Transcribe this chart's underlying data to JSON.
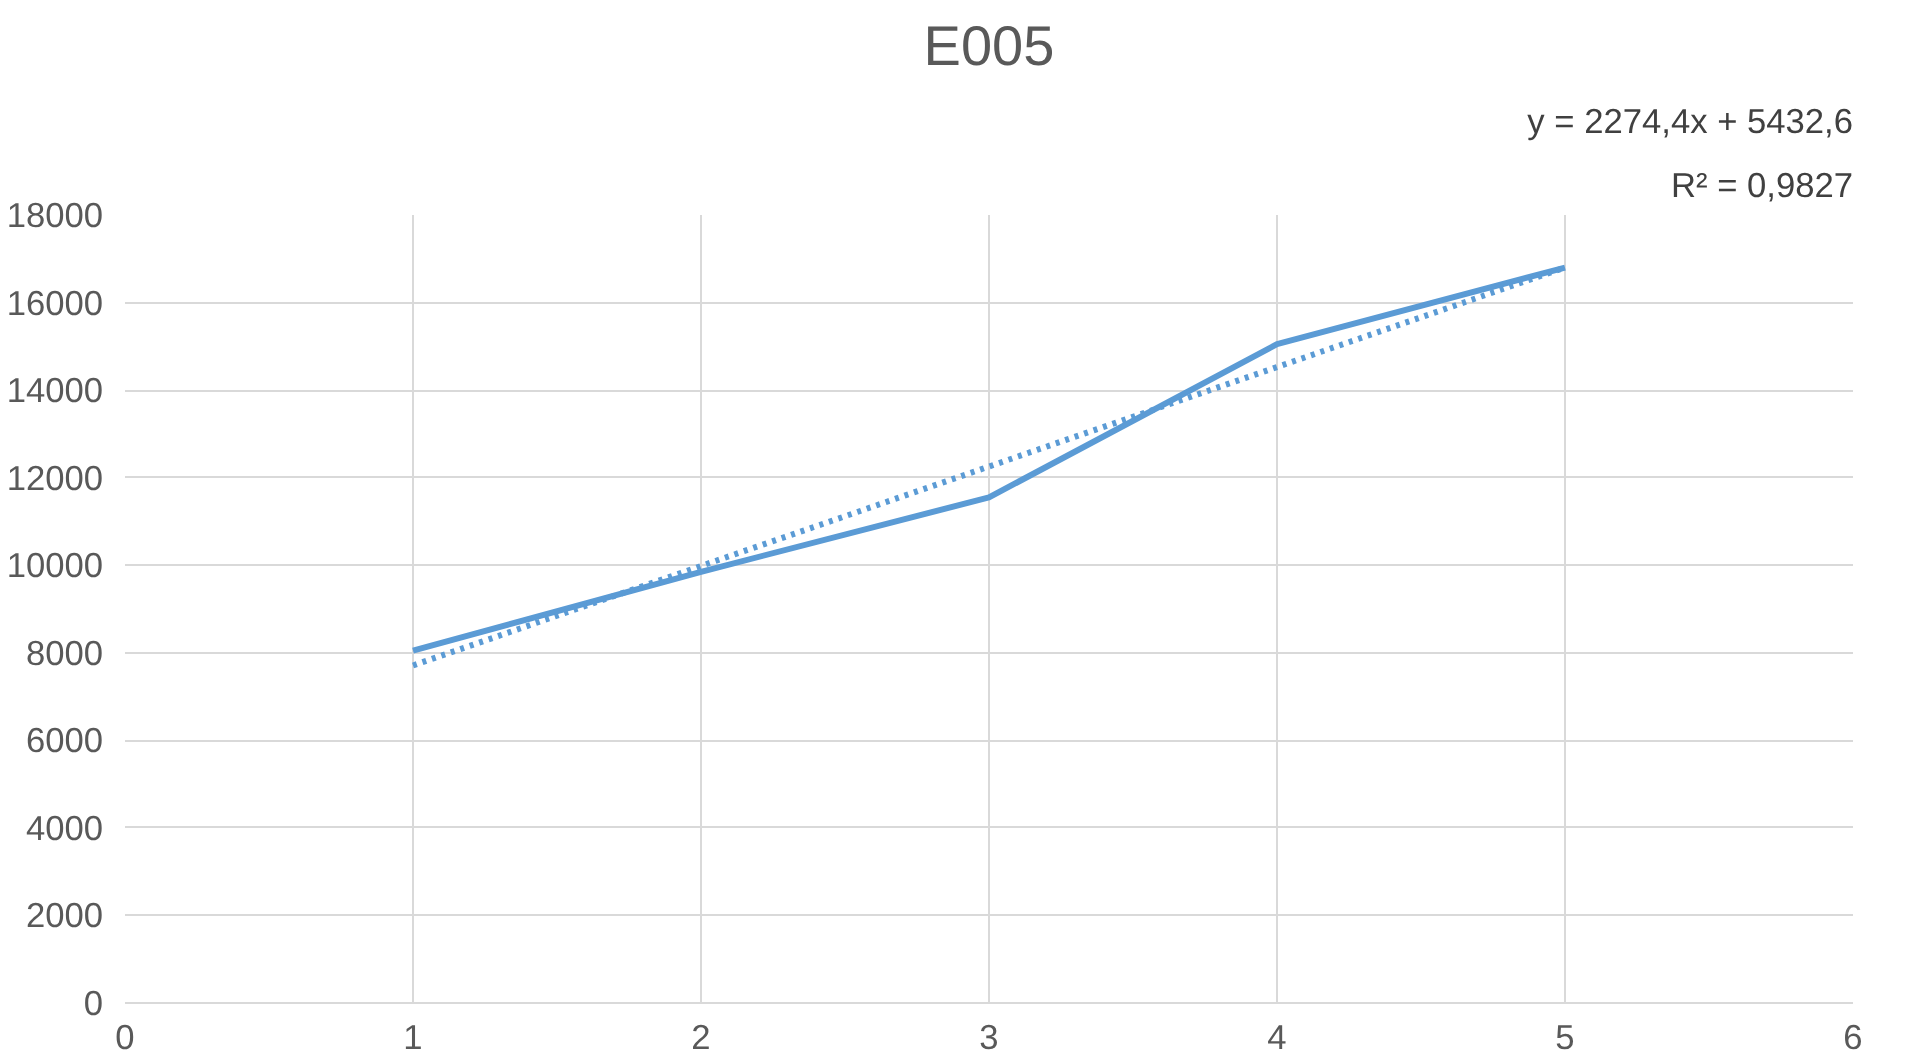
{
  "chart_data": {
    "type": "line",
    "title": "E005",
    "x": [
      1,
      2,
      3,
      4,
      5
    ],
    "series": [
      {
        "name": null,
        "color": "#5b9bd5",
        "values": [
          8050,
          9850,
          11550,
          15050,
          16800
        ],
        "line_style": "solid"
      },
      {
        "type": "line",
        "name": null,
        "color": "#5b9bd5",
        "x": [
          1,
          5
        ],
        "values": [
          7710,
          16800
        ],
        "line_style": "dotted"
      }
    ],
    "annotations": [
      "y = 2274,4x + 5432,6",
      "R² = 0,9827"
    ],
    "xlim": [
      0,
      6
    ],
    "xticks": [
      0,
      1,
      2,
      3,
      4,
      5,
      6
    ],
    "ylim": [
      0,
      18000
    ],
    "yticks": [
      0,
      2000,
      4000,
      6000,
      8000,
      10000,
      12000,
      14000,
      16000,
      18000
    ],
    "grid": true,
    "marker": "none"
  }
}
